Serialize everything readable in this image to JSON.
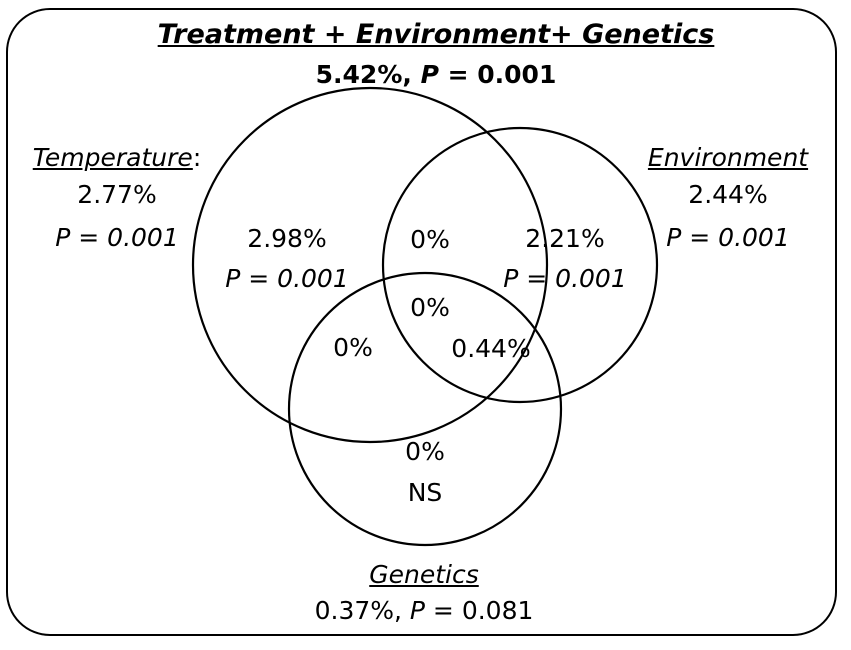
{
  "header": {
    "title": "Treatment + Environment+ Genetics",
    "pct": "5.42%, ",
    "p_label": "P",
    "p_value": " = 0.001"
  },
  "temperature": {
    "label": "Temperature",
    "colon": ":",
    "pct": "2.77%",
    "p": "P = 0.001"
  },
  "environment": {
    "label": "Environment",
    "pct": "2.44%",
    "p": "P = 0.001"
  },
  "genetics": {
    "label": "Genetics",
    "pct": "0.37%, ",
    "p_label": "P",
    "p_value": " = 0.081"
  },
  "regions": {
    "temperature_only": {
      "pct": "2.98%",
      "p": "P = 0.001"
    },
    "environment_only": {
      "pct": "2.21%",
      "p": "P = 0.001"
    },
    "temp_env": "0%",
    "all_three": "0%",
    "temp_gen": "0%",
    "env_gen": "0.44%",
    "genetics_only": {
      "pct": "0%",
      "note": "NS"
    }
  }
}
